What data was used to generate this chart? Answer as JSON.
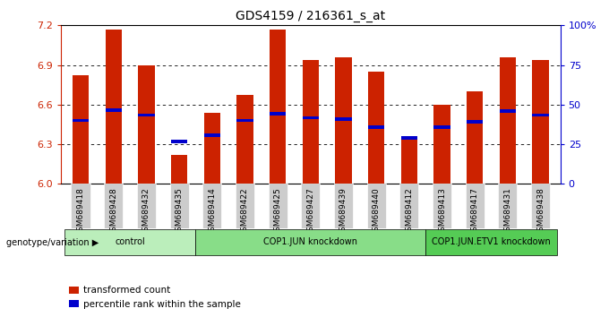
{
  "title": "GDS4159 / 216361_s_at",
  "samples": [
    "GSM689418",
    "GSM689428",
    "GSM689432",
    "GSM689435",
    "GSM689414",
    "GSM689422",
    "GSM689425",
    "GSM689427",
    "GSM689439",
    "GSM689440",
    "GSM689412",
    "GSM689413",
    "GSM689417",
    "GSM689431",
    "GSM689438"
  ],
  "red_values": [
    6.82,
    7.17,
    6.9,
    6.22,
    6.54,
    6.67,
    7.17,
    6.94,
    6.96,
    6.85,
    6.34,
    6.6,
    6.7,
    6.96,
    6.94
  ],
  "blue_values": [
    6.48,
    6.56,
    6.52,
    6.32,
    6.37,
    6.48,
    6.53,
    6.5,
    6.49,
    6.43,
    6.35,
    6.43,
    6.47,
    6.55,
    6.52
  ],
  "groups": [
    {
      "label": "control",
      "start": 0,
      "end": 3,
      "color": "#bbeebb"
    },
    {
      "label": "COP1.JUN knockdown",
      "start": 4,
      "end": 10,
      "color": "#88dd88"
    },
    {
      "label": "COP1.JUN.ETV1 knockdown",
      "start": 11,
      "end": 14,
      "color": "#55cc55"
    }
  ],
  "ylim": [
    6.0,
    7.2
  ],
  "y2lim": [
    0,
    100
  ],
  "yticks": [
    6.0,
    6.3,
    6.6,
    6.9,
    7.2
  ],
  "y2ticks": [
    0,
    25,
    50,
    75,
    100
  ],
  "bar_color": "#cc2200",
  "marker_color": "#0000cc",
  "bar_width": 0.5,
  "yaxis_color": "#cc2200",
  "y2axis_color": "#0000cc",
  "legend_items": [
    "transformed count",
    "percentile rank within the sample"
  ],
  "legend_colors": [
    "#cc2200",
    "#0000cc"
  ],
  "xlabel_genotype": "genotype/variation"
}
